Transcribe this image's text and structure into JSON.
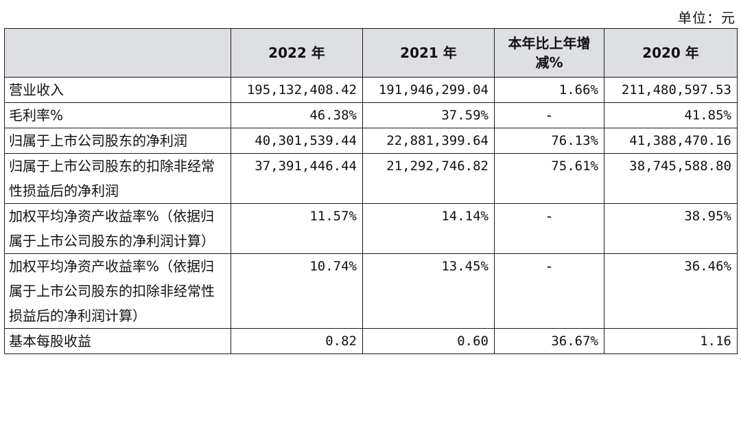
{
  "unit": "单位：元",
  "headers": [
    "",
    "2022 年",
    "2021 年",
    "本年比上年增减%",
    "2020 年"
  ],
  "rows": [
    {
      "label": "营业收入",
      "v2022": "195,132,408.42",
      "v2021": "191,946,299.04",
      "change": "1.66%",
      "v2020": "211,480,597.53"
    },
    {
      "label": "毛利率%",
      "v2022": "46.38%",
      "v2021": "37.59%",
      "change": "-",
      "v2020": "41.85%"
    },
    {
      "label": "归属于上市公司股东的净利润",
      "v2022": "40,301,539.44",
      "v2021": "22,881,399.64",
      "change": "76.13%",
      "v2020": "41,388,470.16"
    },
    {
      "label": "归属于上市公司股东的扣除非经常性损益后的净利润",
      "v2022": "37,391,446.44",
      "v2021": "21,292,746.82",
      "change": "75.61%",
      "v2020": "38,745,588.80"
    },
    {
      "label": "加权平均净资产收益率%（依据归属于上市公司股东的净利润计算）",
      "v2022": "11.57%",
      "v2021": "14.14%",
      "change": "-",
      "v2020": "38.95%"
    },
    {
      "label": "加权平均净资产收益率%（依据归属于上市公司股东的扣除非经常性损益后的净利润计算）",
      "v2022": "10.74%",
      "v2021": "13.45%",
      "change": "-",
      "v2020": "36.46%"
    },
    {
      "label": "基本每股收益",
      "v2022": "0.82",
      "v2021": "0.60",
      "change": "36.67%",
      "v2020": "1.16"
    }
  ]
}
